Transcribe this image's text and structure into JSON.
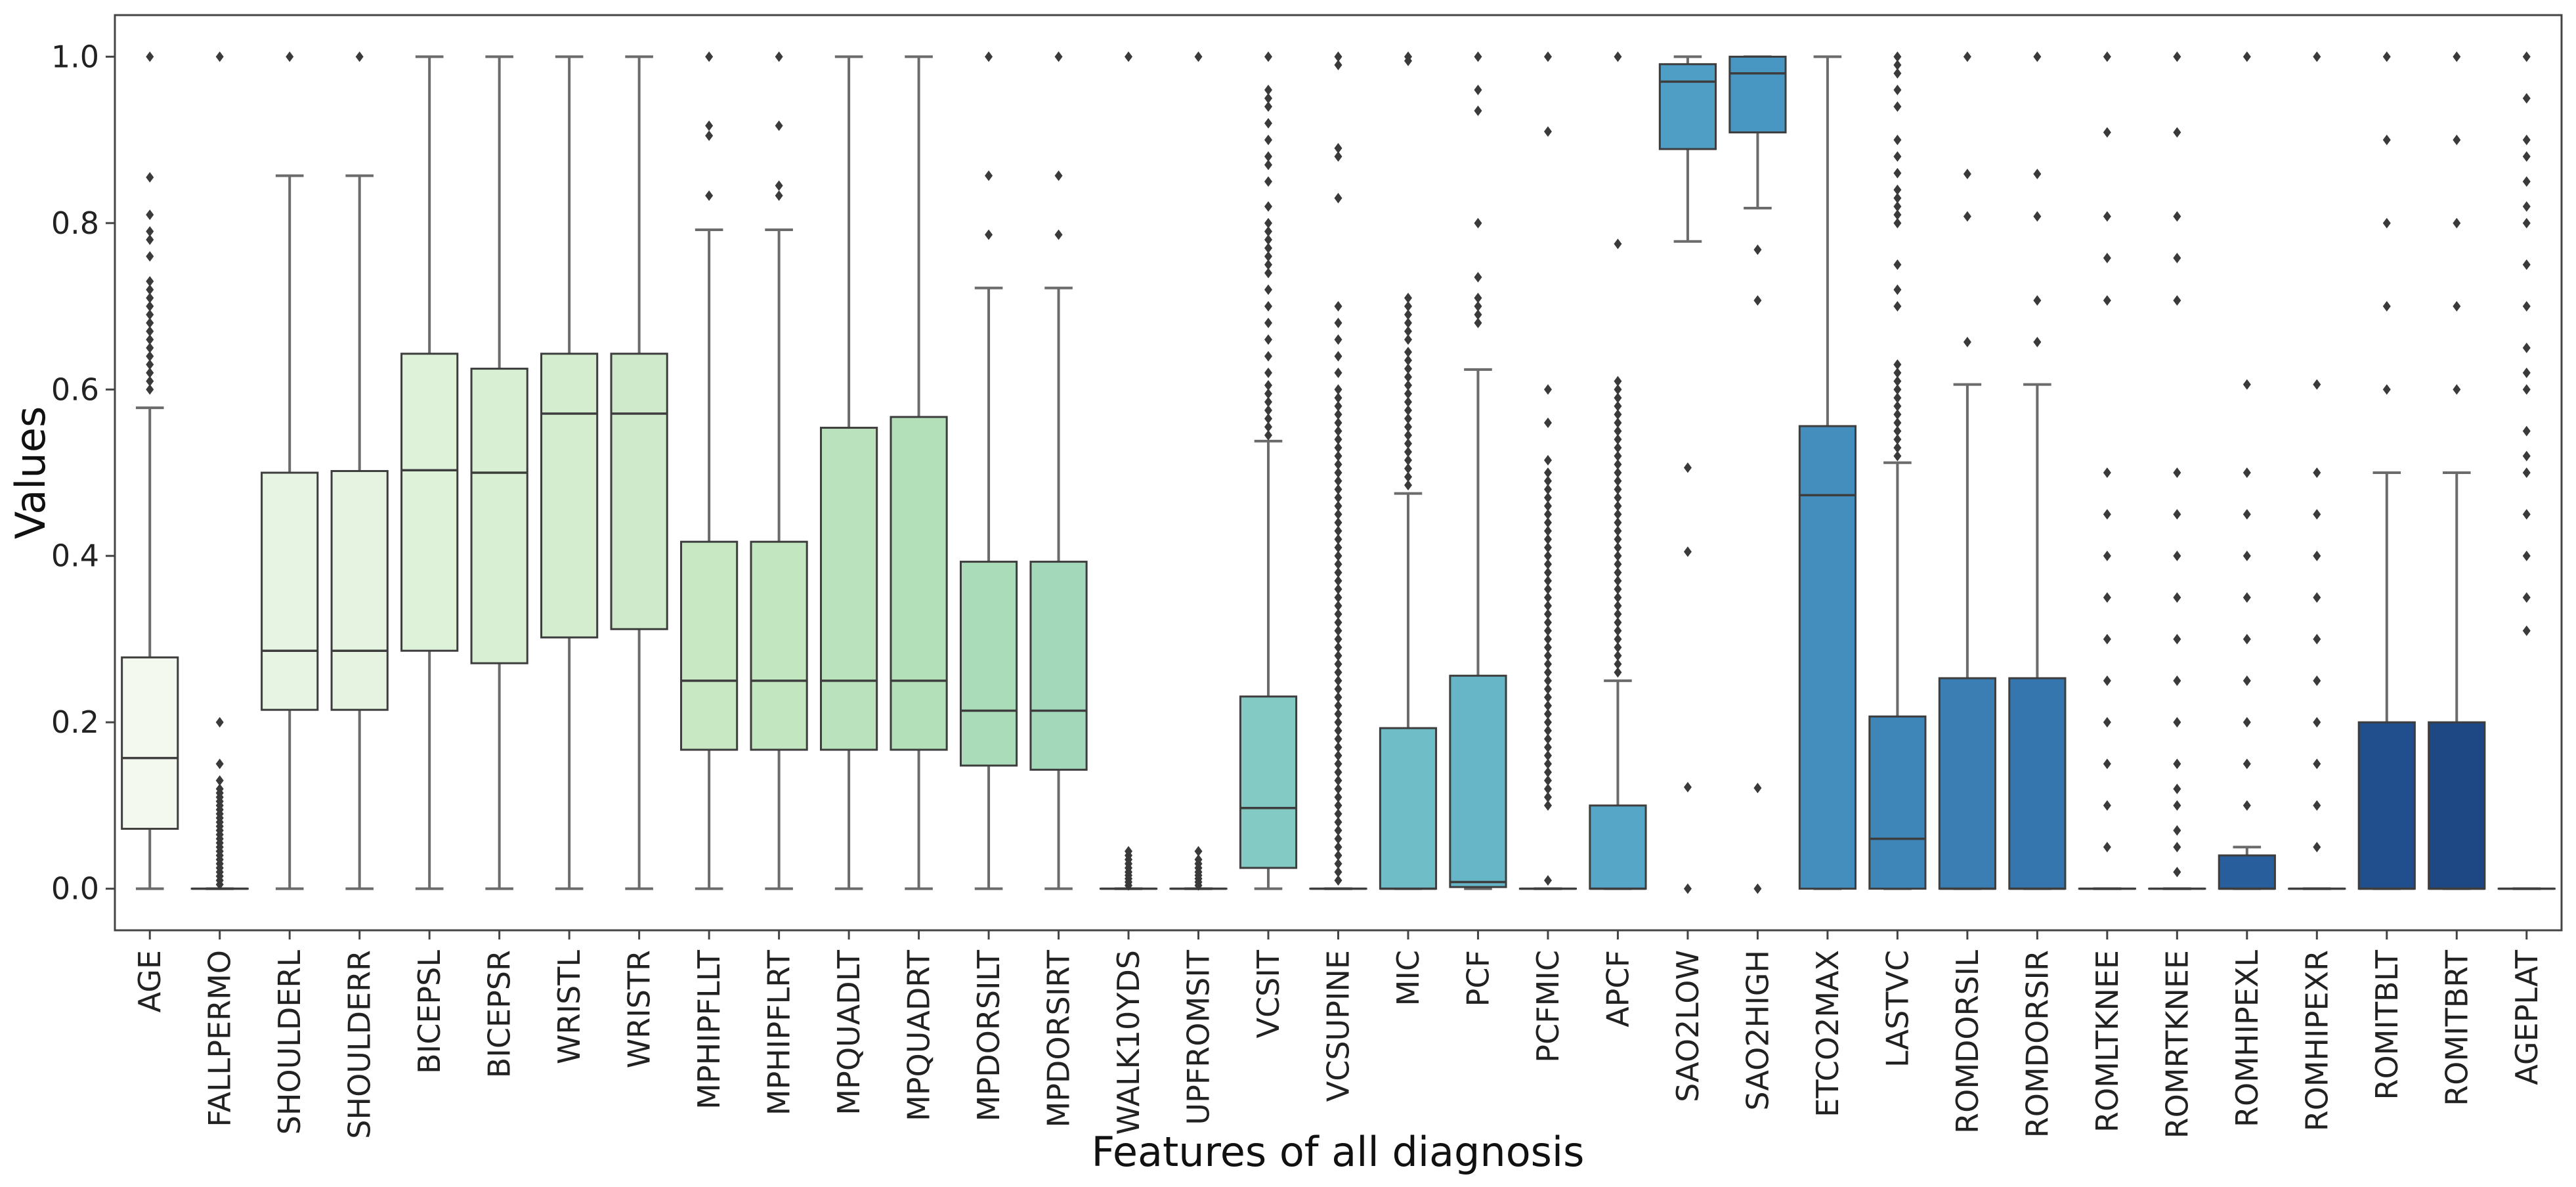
{
  "chart_data": {
    "type": "boxplot",
    "title": "",
    "xlabel": "Features of all diagnosis",
    "ylabel": "Values",
    "ylim": [
      -0.05,
      1.05
    ],
    "yticks": [
      "0.0",
      "0.2",
      "0.4",
      "0.6",
      "0.8",
      "1.0"
    ],
    "ytick_values": [
      0.0,
      0.2,
      0.4,
      0.6,
      0.8,
      1.0
    ],
    "categories": [
      "AGE",
      "FALLPERMO",
      "SHOULDERL",
      "SHOULDERR",
      "BICEPSL",
      "BICEPSR",
      "WRISTL",
      "WRISTR",
      "MPHIPFLLT",
      "MPHIPFLRT",
      "MPQUADLT",
      "MPQUADRT",
      "MPDORSILT",
      "MPDORSIRT",
      "WALK10YDS",
      "UPFROMSIT",
      "VCSIT",
      "VCSUPINE",
      "MIC",
      "PCF",
      "PCFMIC",
      "APCF",
      "SAO2LOW",
      "SAO2HIGH",
      "ETCO2MAX",
      "LASTVC",
      "ROMDORSIL",
      "ROMDORSIR",
      "ROMLTKNEE",
      "ROMRTKNEE",
      "ROMHIPEXL",
      "ROMHIPEXR",
      "ROMITBLT",
      "ROMITBRT",
      "AGEPLAT"
    ],
    "colors": [
      "#f3f9ee",
      "#eef7e9",
      "#e7f4e3",
      "#e5f3e0",
      "#def1d9",
      "#d9efd4",
      "#d4edce",
      "#cfeaca",
      "#c8e8c4",
      "#c2e6c0",
      "#bae3bd",
      "#b3e0b9",
      "#abdcb9",
      "#a3d8bb",
      "#99d4bf",
      "#90cfc3",
      "#84cac4",
      "#79c4c5",
      "#6fbdc6",
      "#66b6c7",
      "#5eaec9",
      "#56a6c8",
      "#4e9ec6",
      "#4896c2",
      "#438ebd",
      "#3e86b8",
      "#3a7eb3",
      "#3676ae",
      "#326ea9",
      "#2d66a3",
      "#295e9c",
      "#255694",
      "#214e8c",
      "#1e4883",
      "#1a4079"
    ],
    "boxes": [
      {
        "whislo": 0.0,
        "q1": 0.072,
        "med": 0.157,
        "q3": 0.278,
        "whishi": 0.578,
        "fliers": [
          0.6,
          0.61,
          0.62,
          0.63,
          0.64,
          0.65,
          0.66,
          0.67,
          0.68,
          0.69,
          0.7,
          0.71,
          0.72,
          0.73,
          0.76,
          0.78,
          0.79,
          0.81,
          0.855,
          1.0
        ]
      },
      {
        "whislo": 0.0,
        "q1": 0.0,
        "med": 0.0,
        "q3": 0.0,
        "whishi": 0.0,
        "fliers": [
          0.005,
          0.01,
          0.015,
          0.02,
          0.025,
          0.03,
          0.035,
          0.04,
          0.045,
          0.05,
          0.055,
          0.06,
          0.065,
          0.07,
          0.075,
          0.08,
          0.085,
          0.09,
          0.095,
          0.1,
          0.105,
          0.11,
          0.115,
          0.12,
          0.13,
          0.15,
          0.2,
          1.0
        ]
      },
      {
        "whislo": 0.0,
        "q1": 0.215,
        "med": 0.286,
        "q3": 0.5,
        "whishi": 0.857,
        "fliers": [
          1.0
        ]
      },
      {
        "whislo": 0.0,
        "q1": 0.215,
        "med": 0.286,
        "q3": 0.502,
        "whishi": 0.857,
        "fliers": [
          1.0
        ]
      },
      {
        "whislo": 0.0,
        "q1": 0.286,
        "med": 0.503,
        "q3": 0.643,
        "whishi": 1.0,
        "fliers": []
      },
      {
        "whislo": 0.0,
        "q1": 0.271,
        "med": 0.5,
        "q3": 0.625,
        "whishi": 1.0,
        "fliers": []
      },
      {
        "whislo": 0.0,
        "q1": 0.302,
        "med": 0.571,
        "q3": 0.643,
        "whishi": 1.0,
        "fliers": []
      },
      {
        "whislo": 0.0,
        "q1": 0.312,
        "med": 0.571,
        "q3": 0.643,
        "whishi": 1.0,
        "fliers": []
      },
      {
        "whislo": 0.0,
        "q1": 0.167,
        "med": 0.25,
        "q3": 0.417,
        "whishi": 0.792,
        "fliers": [
          0.833,
          0.905,
          0.917,
          1.0
        ]
      },
      {
        "whislo": 0.0,
        "q1": 0.167,
        "med": 0.25,
        "q3": 0.417,
        "whishi": 0.792,
        "fliers": [
          0.833,
          0.845,
          0.917,
          1.0
        ]
      },
      {
        "whislo": 0.0,
        "q1": 0.167,
        "med": 0.25,
        "q3": 0.554,
        "whishi": 1.0,
        "fliers": []
      },
      {
        "whislo": 0.0,
        "q1": 0.167,
        "med": 0.25,
        "q3": 0.567,
        "whishi": 1.0,
        "fliers": []
      },
      {
        "whislo": 0.0,
        "q1": 0.148,
        "med": 0.214,
        "q3": 0.393,
        "whishi": 0.722,
        "fliers": [
          0.786,
          0.857,
          1.0
        ]
      },
      {
        "whislo": 0.0,
        "q1": 0.143,
        "med": 0.214,
        "q3": 0.393,
        "whishi": 0.722,
        "fliers": [
          0.786,
          0.857,
          1.0
        ]
      },
      {
        "whislo": 0.0,
        "q1": 0.0,
        "med": 0.0,
        "q3": 0.0,
        "whishi": 0.0,
        "fliers": [
          0.004,
          0.008,
          0.012,
          0.016,
          0.02,
          0.025,
          0.03,
          0.035,
          0.04,
          0.045,
          1.0
        ]
      },
      {
        "whislo": 0.0,
        "q1": 0.0,
        "med": 0.0,
        "q3": 0.0,
        "whishi": 0.0,
        "fliers": [
          0.004,
          0.008,
          0.012,
          0.016,
          0.02,
          0.025,
          0.03,
          0.035,
          0.045,
          1.0
        ]
      },
      {
        "whislo": 0.0,
        "q1": 0.025,
        "med": 0.097,
        "q3": 0.231,
        "whishi": 0.538,
        "fliers": [
          0.545,
          0.555,
          0.565,
          0.575,
          0.585,
          0.595,
          0.605,
          0.62,
          0.64,
          0.66,
          0.68,
          0.7,
          0.72,
          0.74,
          0.75,
          0.76,
          0.77,
          0.78,
          0.79,
          0.8,
          0.82,
          0.85,
          0.87,
          0.88,
          0.9,
          0.92,
          0.94,
          0.95,
          0.96,
          1.0
        ]
      },
      {
        "whislo": 0.0,
        "q1": 0.0,
        "med": 0.0,
        "q3": 0.0,
        "whishi": 0.0,
        "fliers": [
          0.01,
          0.02,
          0.03,
          0.04,
          0.05,
          0.06,
          0.07,
          0.08,
          0.09,
          0.1,
          0.11,
          0.12,
          0.13,
          0.14,
          0.15,
          0.16,
          0.17,
          0.18,
          0.19,
          0.2,
          0.21,
          0.22,
          0.23,
          0.24,
          0.25,
          0.26,
          0.27,
          0.28,
          0.29,
          0.3,
          0.31,
          0.32,
          0.33,
          0.34,
          0.35,
          0.36,
          0.37,
          0.38,
          0.39,
          0.4,
          0.41,
          0.42,
          0.43,
          0.44,
          0.45,
          0.46,
          0.47,
          0.48,
          0.49,
          0.5,
          0.51,
          0.52,
          0.53,
          0.54,
          0.55,
          0.56,
          0.57,
          0.58,
          0.59,
          0.6,
          0.62,
          0.64,
          0.66,
          0.68,
          0.7,
          0.83,
          0.88,
          0.89,
          0.99,
          1.0
        ]
      },
      {
        "whislo": 0.0,
        "q1": 0.0,
        "med": 0.0,
        "q3": 0.193,
        "whishi": 0.475,
        "fliers": [
          0.485,
          0.495,
          0.505,
          0.515,
          0.525,
          0.535,
          0.545,
          0.555,
          0.565,
          0.575,
          0.585,
          0.595,
          0.605,
          0.615,
          0.625,
          0.635,
          0.645,
          0.66,
          0.67,
          0.68,
          0.69,
          0.7,
          0.71,
          0.995,
          1.0
        ]
      },
      {
        "whislo": 0.0,
        "q1": 0.002,
        "med": 0.008,
        "q3": 0.256,
        "whishi": 0.624,
        "fliers": [
          0.68,
          0.69,
          0.7,
          0.71,
          0.735,
          0.8,
          0.935,
          0.96,
          1.0
        ]
      },
      {
        "whislo": 0.0,
        "q1": 0.0,
        "med": 0.0,
        "q3": 0.0,
        "whishi": 0.0,
        "fliers": [
          0.01,
          0.1,
          0.11,
          0.12,
          0.13,
          0.14,
          0.15,
          0.16,
          0.17,
          0.18,
          0.19,
          0.2,
          0.21,
          0.22,
          0.23,
          0.24,
          0.25,
          0.26,
          0.27,
          0.28,
          0.29,
          0.3,
          0.31,
          0.32,
          0.33,
          0.34,
          0.35,
          0.36,
          0.37,
          0.38,
          0.39,
          0.4,
          0.41,
          0.42,
          0.43,
          0.44,
          0.45,
          0.46,
          0.47,
          0.48,
          0.49,
          0.5,
          0.515,
          0.56,
          0.6,
          0.91,
          1.0
        ]
      },
      {
        "whislo": 0.0,
        "q1": 0.0,
        "med": 0.0,
        "q3": 0.1,
        "whishi": 0.25,
        "fliers": [
          0.26,
          0.27,
          0.28,
          0.29,
          0.3,
          0.31,
          0.32,
          0.33,
          0.34,
          0.35,
          0.36,
          0.37,
          0.38,
          0.39,
          0.4,
          0.41,
          0.42,
          0.43,
          0.44,
          0.45,
          0.46,
          0.47,
          0.48,
          0.49,
          0.5,
          0.51,
          0.52,
          0.53,
          0.54,
          0.55,
          0.56,
          0.57,
          0.58,
          0.59,
          0.6,
          0.61,
          0.775,
          1.0
        ]
      },
      {
        "whislo": 0.778,
        "q1": 0.889,
        "med": 0.97,
        "q3": 0.991,
        "whishi": 1.0,
        "fliers": [
          0.506,
          0.405,
          0.122,
          0.0
        ]
      },
      {
        "whislo": 0.818,
        "q1": 0.909,
        "med": 0.98,
        "q3": 1.0,
        "whishi": 1.0,
        "fliers": [
          0.768,
          0.707,
          0.121,
          0.0
        ]
      },
      {
        "whislo": 0.0,
        "q1": 0.0,
        "med": 0.473,
        "q3": 0.556,
        "whishi": 1.0,
        "fliers": []
      },
      {
        "whislo": 0.0,
        "q1": 0.0,
        "med": 0.06,
        "q3": 0.207,
        "whishi": 0.512,
        "fliers": [
          0.52,
          0.53,
          0.54,
          0.55,
          0.56,
          0.57,
          0.58,
          0.59,
          0.6,
          0.61,
          0.62,
          0.63,
          0.7,
          0.72,
          0.75,
          0.8,
          0.81,
          0.82,
          0.83,
          0.84,
          0.86,
          0.88,
          0.9,
          0.94,
          0.96,
          0.98,
          0.99,
          1.0
        ]
      },
      {
        "whislo": 0.0,
        "q1": 0.0,
        "med": 0.0,
        "q3": 0.253,
        "whishi": 0.606,
        "fliers": [
          0.657,
          0.808,
          0.859,
          1.0
        ]
      },
      {
        "whislo": 0.0,
        "q1": 0.0,
        "med": 0.0,
        "q3": 0.253,
        "whishi": 0.606,
        "fliers": [
          0.657,
          0.707,
          0.808,
          0.859,
          1.0
        ]
      },
      {
        "whislo": 0.0,
        "q1": 0.0,
        "med": 0.0,
        "q3": 0.0,
        "whishi": 0.0,
        "fliers": [
          0.05,
          0.1,
          0.15,
          0.2,
          0.25,
          0.3,
          0.35,
          0.4,
          0.45,
          0.5,
          0.707,
          0.758,
          0.808,
          0.909,
          1.0
        ]
      },
      {
        "whislo": 0.0,
        "q1": 0.0,
        "med": 0.0,
        "q3": 0.0,
        "whishi": 0.0,
        "fliers": [
          0.02,
          0.05,
          0.07,
          0.1,
          0.12,
          0.15,
          0.2,
          0.25,
          0.3,
          0.35,
          0.4,
          0.45,
          0.5,
          0.707,
          0.758,
          0.808,
          0.909,
          1.0
        ]
      },
      {
        "whislo": 0.0,
        "q1": 0.0,
        "med": 0.0,
        "q3": 0.04,
        "whishi": 0.05,
        "fliers": [
          0.1,
          0.15,
          0.2,
          0.25,
          0.3,
          0.35,
          0.4,
          0.45,
          0.5,
          0.606,
          1.0
        ]
      },
      {
        "whislo": 0.0,
        "q1": 0.0,
        "med": 0.0,
        "q3": 0.0,
        "whishi": 0.0,
        "fliers": [
          0.05,
          0.1,
          0.15,
          0.2,
          0.25,
          0.3,
          0.35,
          0.4,
          0.45,
          0.5,
          0.606,
          1.0
        ]
      },
      {
        "whislo": 0.0,
        "q1": 0.0,
        "med": 0.0,
        "q3": 0.2,
        "whishi": 0.5,
        "fliers": [
          0.6,
          0.7,
          0.8,
          0.9,
          1.0
        ]
      },
      {
        "whislo": 0.0,
        "q1": 0.0,
        "med": 0.0,
        "q3": 0.2,
        "whishi": 0.5,
        "fliers": [
          0.6,
          0.7,
          0.8,
          0.9,
          1.0
        ]
      },
      {
        "whislo": 0.0,
        "q1": 0.0,
        "med": 0.0,
        "q3": 0.0,
        "whishi": 0.0,
        "fliers": [
          0.31,
          0.35,
          0.4,
          0.45,
          0.5,
          0.52,
          0.55,
          0.6,
          0.62,
          0.65,
          0.7,
          0.75,
          0.8,
          0.82,
          0.85,
          0.88,
          0.9,
          0.95,
          1.0
        ]
      }
    ]
  }
}
